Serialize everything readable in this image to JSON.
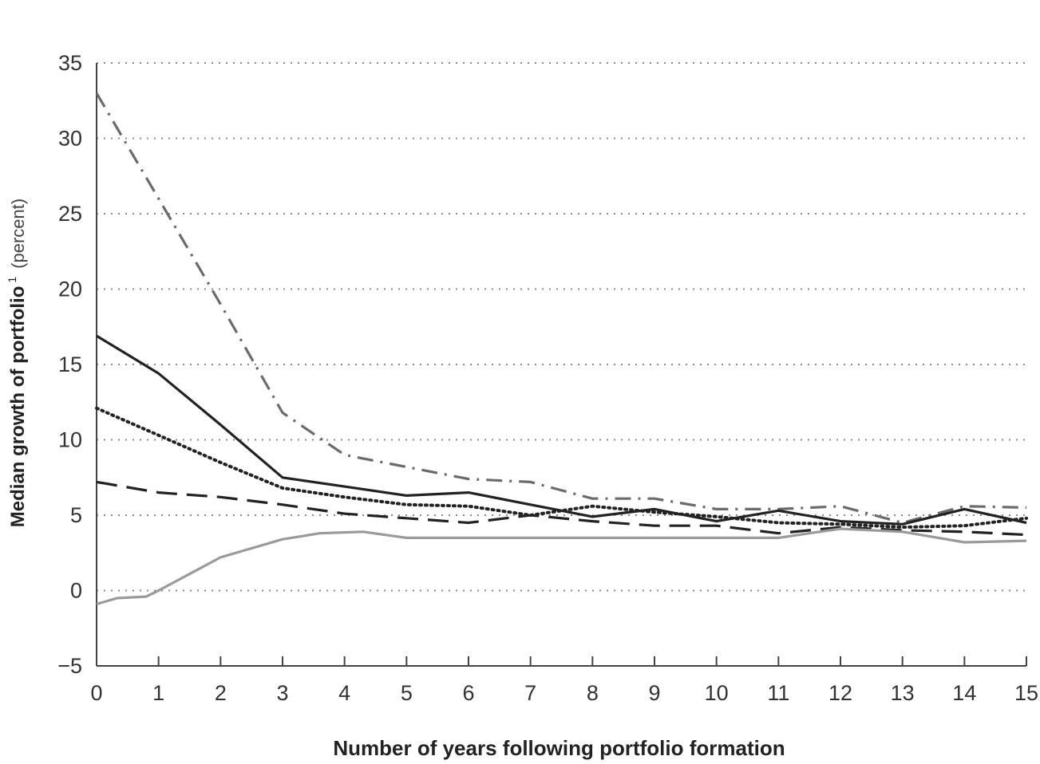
{
  "chart_data": {
    "type": "line",
    "title": "",
    "xlabel": "Number of years following portfolio formation",
    "ylabel": "Median growth of portfolio",
    "ylabel_superscript": "1",
    "ylabel_unit": "(percent)",
    "xlim": [
      0,
      15
    ],
    "ylim": [
      -5,
      35
    ],
    "x_ticks": [
      "0",
      "1",
      "2",
      "3",
      "4",
      "5",
      "6",
      "7",
      "8",
      "9",
      "10",
      "11",
      "12",
      "13",
      "14",
      "15"
    ],
    "y_ticks": [
      "35",
      "30",
      "25",
      "20",
      "15",
      "10",
      "5",
      "0",
      "−5"
    ],
    "y_tick_values": [
      35,
      30,
      25,
      20,
      15,
      10,
      5,
      0,
      -5
    ],
    "grid": "horizontal dotted",
    "series": [
      {
        "name": "dash-dot series",
        "style": "dashdot",
        "color": "#6b6b6b",
        "x": [
          0,
          1,
          2,
          3,
          4,
          5,
          6,
          7,
          8,
          9,
          10,
          11,
          12,
          13,
          14,
          15
        ],
        "values": [
          33,
          26,
          19,
          11.8,
          9,
          8.2,
          7.4,
          7.2,
          6.1,
          6.1,
          5.4,
          5.4,
          5.6,
          4.5,
          5.6,
          5.5
        ]
      },
      {
        "name": "solid black series",
        "style": "solid",
        "color": "#222222",
        "x": [
          0,
          1,
          2,
          3,
          4,
          5,
          6,
          7,
          8,
          9,
          10,
          11,
          12,
          13,
          14,
          15
        ],
        "values": [
          16.9,
          14.4,
          11,
          7.5,
          6.9,
          6.3,
          6.5,
          5.7,
          4.9,
          5.4,
          4.6,
          5.3,
          4.6,
          4.4,
          5.4,
          4.5
        ]
      },
      {
        "name": "dotted series",
        "style": "dotted",
        "color": "#222222",
        "x": [
          0,
          1,
          2,
          3,
          4,
          5,
          6,
          7,
          8,
          9,
          10,
          11,
          12,
          13,
          14,
          15
        ],
        "values": [
          12.1,
          10.3,
          8.5,
          6.8,
          6.2,
          5.7,
          5.6,
          5,
          5.6,
          5.2,
          4.9,
          4.5,
          4.4,
          4.2,
          4.3,
          4.8
        ]
      },
      {
        "name": "long dash series",
        "style": "dashed",
        "color": "#222222",
        "x": [
          0,
          1,
          2,
          3,
          4,
          5,
          6,
          7,
          8,
          9,
          10,
          11,
          12,
          13,
          14,
          15
        ],
        "values": [
          7.2,
          6.5,
          6.2,
          5.7,
          5.1,
          4.8,
          4.5,
          5,
          4.6,
          4.3,
          4.3,
          3.8,
          4.2,
          4,
          3.9,
          3.7
        ]
      },
      {
        "name": "solid gray series",
        "style": "solid",
        "color": "#9a9a9a",
        "x": [
          0,
          0.33,
          0.8,
          1,
          2,
          3,
          3.6,
          4.3,
          5,
          6,
          7,
          8,
          9,
          10,
          11,
          12,
          13,
          14,
          15
        ],
        "values": [
          -0.9,
          -0.5,
          -0.4,
          0,
          2.2,
          3.4,
          3.8,
          3.9,
          3.5,
          3.5,
          3.5,
          3.5,
          3.5,
          3.5,
          3.5,
          4.1,
          3.9,
          3.2,
          3.3
        ]
      }
    ]
  }
}
